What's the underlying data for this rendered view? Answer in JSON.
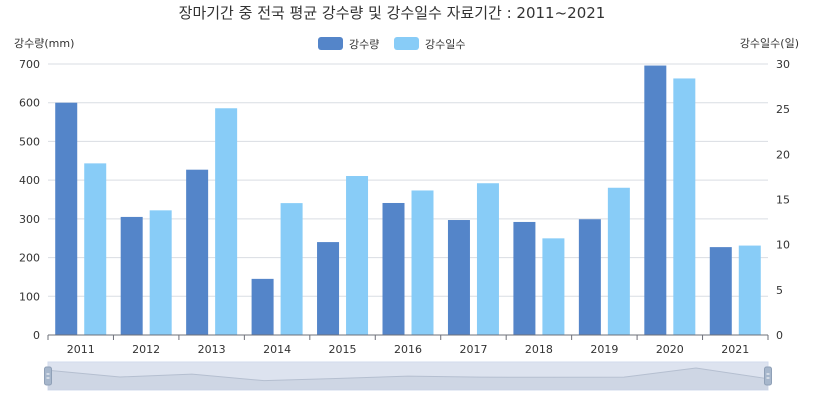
{
  "chart_data": {
    "type": "bar",
    "title": "장마기간 중 전국 평균 강수량 및 강수일수 자료기간 : 2011~2021",
    "categories": [
      "2011",
      "2012",
      "2013",
      "2014",
      "2015",
      "2016",
      "2017",
      "2018",
      "2019",
      "2020",
      "2021"
    ],
    "series": [
      {
        "name": "강수량",
        "axis": "left",
        "color": "#5485c9",
        "values": [
          600,
          305,
          427,
          145,
          240,
          341,
          297,
          292,
          299,
          696,
          227
        ]
      },
      {
        "name": "강수일수",
        "axis": "right",
        "color": "#88ccf7",
        "values": [
          19,
          13.8,
          25.1,
          14.6,
          17.6,
          16,
          16.8,
          10.7,
          16.3,
          28.4,
          9.9
        ]
      }
    ],
    "ylabel_left": "강수량(mm)",
    "ylabel_right": "강수일수(일)",
    "ylim_left": [
      0,
      700
    ],
    "ylim_right": [
      0,
      30
    ],
    "yticks_left": [
      "0",
      "100",
      "200",
      "300",
      "400",
      "500",
      "600",
      "700"
    ],
    "yticks_right": [
      "0",
      "5",
      "10",
      "15",
      "20",
      "25",
      "30"
    ],
    "grid": true,
    "legend_position": "top-center",
    "data_zoom_slider": true
  }
}
